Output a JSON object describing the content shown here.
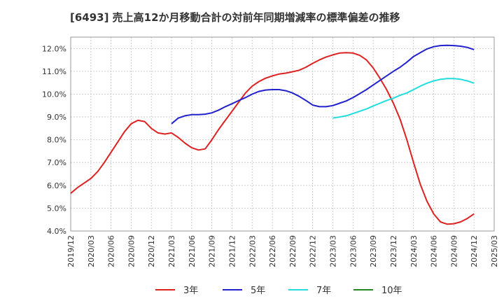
{
  "chart_data": {
    "type": "line",
    "title": "[6493]  売上高12か月移動合計の対前年同期増減率の標準偏差の推移",
    "xlabel": "",
    "ylabel": "",
    "ylim": [
      4.0,
      12.5
    ],
    "y_ticks": [
      "4.0%",
      "5.0%",
      "6.0%",
      "7.0%",
      "8.0%",
      "9.0%",
      "10.0%",
      "11.0%",
      "12.0%"
    ],
    "x_ticks": [
      "2019/12",
      "2020/03",
      "2020/06",
      "2020/09",
      "2020/12",
      "2021/03",
      "2021/06",
      "2021/09",
      "2021/12",
      "2022/03",
      "2022/06",
      "2022/09",
      "2022/12",
      "2023/03",
      "2023/06",
      "2023/09",
      "2023/12",
      "2024/03",
      "2024/06",
      "2024/09",
      "2024/12",
      "2025/03"
    ],
    "grid": true,
    "legend_position": "bottom",
    "series": [
      {
        "name": "3年",
        "color": "#dd2222",
        "x": [
          "2019/12",
          "2020/01",
          "2020/02",
          "2020/03",
          "2020/04",
          "2020/05",
          "2020/06",
          "2020/07",
          "2020/08",
          "2020/09",
          "2020/10",
          "2020/11",
          "2020/12",
          "2021/01",
          "2021/02",
          "2021/03",
          "2021/04",
          "2021/05",
          "2021/06",
          "2021/07",
          "2021/08",
          "2021/09",
          "2021/10",
          "2021/11",
          "2021/12",
          "2022/01",
          "2022/02",
          "2022/03",
          "2022/04",
          "2022/05",
          "2022/06",
          "2022/07",
          "2022/08",
          "2022/09",
          "2022/10",
          "2022/11",
          "2022/12",
          "2023/01",
          "2023/02",
          "2023/03",
          "2023/04",
          "2023/05",
          "2023/06",
          "2023/07",
          "2023/08",
          "2023/09",
          "2023/10",
          "2023/11",
          "2023/12",
          "2024/01",
          "2024/02",
          "2024/03",
          "2024/04",
          "2024/05",
          "2024/06",
          "2024/07",
          "2024/08",
          "2024/09",
          "2024/10",
          "2024/11",
          "2024/12"
        ],
        "values": [
          5.65,
          5.9,
          6.1,
          6.3,
          6.6,
          7.0,
          7.45,
          7.9,
          8.35,
          8.7,
          8.85,
          8.8,
          8.5,
          8.3,
          8.25,
          8.3,
          8.1,
          7.85,
          7.65,
          7.55,
          7.6,
          8.0,
          8.45,
          8.85,
          9.25,
          9.65,
          10.05,
          10.35,
          10.55,
          10.7,
          10.8,
          10.88,
          10.92,
          10.98,
          11.05,
          11.18,
          11.35,
          11.5,
          11.63,
          11.72,
          11.8,
          11.82,
          11.8,
          11.7,
          11.5,
          11.15,
          10.7,
          10.2,
          9.6,
          8.9,
          8.0,
          7.0,
          6.05,
          5.3,
          4.75,
          4.4,
          4.3,
          4.32,
          4.4,
          4.55,
          4.75
        ]
      },
      {
        "name": "5年",
        "color": "#2222cc",
        "x": [
          "2021/03",
          "2021/04",
          "2021/05",
          "2021/06",
          "2021/07",
          "2021/08",
          "2021/09",
          "2021/10",
          "2021/11",
          "2021/12",
          "2022/01",
          "2022/02",
          "2022/03",
          "2022/04",
          "2022/05",
          "2022/06",
          "2022/07",
          "2022/08",
          "2022/09",
          "2022/10",
          "2022/11",
          "2022/12",
          "2023/01",
          "2023/02",
          "2023/03",
          "2023/04",
          "2023/05",
          "2023/06",
          "2023/07",
          "2023/08",
          "2023/09",
          "2023/10",
          "2023/11",
          "2023/12",
          "2024/01",
          "2024/02",
          "2024/03",
          "2024/04",
          "2024/05",
          "2024/06",
          "2024/07",
          "2024/08",
          "2024/09",
          "2024/10",
          "2024/11",
          "2024/12"
        ],
        "values": [
          8.7,
          8.95,
          9.05,
          9.1,
          9.1,
          9.12,
          9.18,
          9.3,
          9.45,
          9.58,
          9.72,
          9.85,
          10.0,
          10.12,
          10.18,
          10.2,
          10.2,
          10.15,
          10.05,
          9.9,
          9.72,
          9.52,
          9.45,
          9.45,
          9.5,
          9.6,
          9.7,
          9.85,
          10.02,
          10.2,
          10.4,
          10.6,
          10.8,
          11.0,
          11.18,
          11.4,
          11.65,
          11.82,
          11.98,
          12.08,
          12.13,
          12.14,
          12.13,
          12.1,
          12.05,
          11.95
        ]
      },
      {
        "name": "7年",
        "color": "#22dddd",
        "x": [
          "2023/03",
          "2023/04",
          "2023/05",
          "2023/06",
          "2023/07",
          "2023/08",
          "2023/09",
          "2023/10",
          "2023/11",
          "2023/12",
          "2024/01",
          "2024/02",
          "2024/03",
          "2024/04",
          "2024/05",
          "2024/06",
          "2024/07",
          "2024/08",
          "2024/09",
          "2024/10",
          "2024/11",
          "2024/12"
        ],
        "values": [
          8.95,
          9.0,
          9.05,
          9.15,
          9.25,
          9.35,
          9.48,
          9.6,
          9.72,
          9.82,
          9.95,
          10.05,
          10.2,
          10.35,
          10.48,
          10.58,
          10.65,
          10.68,
          10.68,
          10.65,
          10.58,
          10.48
        ]
      },
      {
        "name": "10年",
        "color": "#228822",
        "x": [],
        "values": []
      }
    ]
  }
}
